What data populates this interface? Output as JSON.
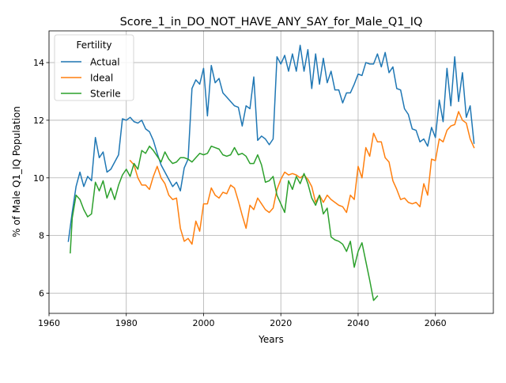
{
  "chart_data": {
    "type": "line",
    "title": "Score_1_in_DO_NOT_HAVE_ANY_SAY_for_Male_Q1_IQ",
    "xlabel": "Years",
    "ylabel": "% of Male Q1_IQ Population",
    "xlim": [
      1960,
      2075
    ],
    "ylim": [
      5.3,
      15.1
    ],
    "xticks": [
      1960,
      1980,
      2000,
      2020,
      2040,
      2060
    ],
    "yticks": [
      6,
      8,
      10,
      12,
      14
    ],
    "grid": true,
    "legend": {
      "title": "Fertility",
      "position": "top-left"
    },
    "series": [
      {
        "name": "Actual",
        "color": "#1f77b4",
        "points": [
          [
            1965,
            7.8
          ],
          [
            1966,
            8.8
          ],
          [
            1967,
            9.7
          ],
          [
            1968,
            10.2
          ],
          [
            1969,
            9.7
          ],
          [
            1970,
            10.05
          ],
          [
            1971,
            9.9
          ],
          [
            1972,
            11.4
          ],
          [
            1973,
            10.7
          ],
          [
            1974,
            10.9
          ],
          [
            1975,
            10.2
          ],
          [
            1976,
            10.3
          ],
          [
            1977,
            10.55
          ],
          [
            1978,
            10.8
          ],
          [
            1979,
            12.05
          ],
          [
            1980,
            12.0
          ],
          [
            1981,
            12.1
          ],
          [
            1982,
            11.95
          ],
          [
            1983,
            11.9
          ],
          [
            1984,
            12.0
          ],
          [
            1985,
            11.7
          ],
          [
            1986,
            11.6
          ],
          [
            1987,
            11.3
          ],
          [
            1988,
            10.85
          ],
          [
            1989,
            10.45
          ],
          [
            1990,
            10.2
          ],
          [
            1991,
            9.95
          ],
          [
            1992,
            9.7
          ],
          [
            1993,
            9.85
          ],
          [
            1994,
            9.55
          ],
          [
            1995,
            10.35
          ],
          [
            1996,
            10.65
          ],
          [
            1997,
            13.1
          ],
          [
            1998,
            13.4
          ],
          [
            1999,
            13.25
          ],
          [
            2000,
            13.8
          ],
          [
            2001,
            12.15
          ],
          [
            2002,
            13.9
          ],
          [
            2003,
            13.3
          ],
          [
            2004,
            13.45
          ],
          [
            2005,
            12.95
          ],
          [
            2006,
            12.8
          ],
          [
            2007,
            12.65
          ],
          [
            2008,
            12.5
          ],
          [
            2009,
            12.45
          ],
          [
            2010,
            11.8
          ],
          [
            2011,
            12.5
          ],
          [
            2012,
            12.4
          ],
          [
            2013,
            13.5
          ],
          [
            2014,
            11.3
          ],
          [
            2015,
            11.45
          ],
          [
            2016,
            11.35
          ],
          [
            2017,
            11.15
          ],
          [
            2018,
            11.35
          ],
          [
            2019,
            14.2
          ],
          [
            2020,
            13.95
          ],
          [
            2021,
            14.25
          ],
          [
            2022,
            13.7
          ],
          [
            2023,
            14.3
          ],
          [
            2024,
            13.7
          ],
          [
            2025,
            14.6
          ],
          [
            2026,
            13.7
          ],
          [
            2027,
            14.45
          ],
          [
            2028,
            13.1
          ],
          [
            2029,
            14.3
          ],
          [
            2030,
            13.25
          ],
          [
            2031,
            14.15
          ],
          [
            2032,
            13.3
          ],
          [
            2033,
            13.7
          ],
          [
            2034,
            13.05
          ],
          [
            2035,
            13.05
          ],
          [
            2036,
            12.6
          ],
          [
            2037,
            12.95
          ],
          [
            2038,
            12.95
          ],
          [
            2039,
            13.25
          ],
          [
            2040,
            13.6
          ],
          [
            2041,
            13.55
          ],
          [
            2042,
            14.0
          ],
          [
            2043,
            13.95
          ],
          [
            2044,
            13.95
          ],
          [
            2045,
            14.3
          ],
          [
            2046,
            13.85
          ],
          [
            2047,
            14.35
          ],
          [
            2048,
            13.65
          ],
          [
            2049,
            13.85
          ],
          [
            2050,
            13.1
          ],
          [
            2051,
            13.05
          ],
          [
            2052,
            12.4
          ],
          [
            2053,
            12.2
          ],
          [
            2054,
            11.7
          ],
          [
            2055,
            11.65
          ],
          [
            2056,
            11.25
          ],
          [
            2057,
            11.35
          ],
          [
            2058,
            11.1
          ],
          [
            2059,
            11.75
          ],
          [
            2060,
            11.4
          ],
          [
            2061,
            12.7
          ],
          [
            2062,
            11.95
          ],
          [
            2063,
            13.8
          ],
          [
            2064,
            12.5
          ],
          [
            2065,
            14.2
          ],
          [
            2066,
            12.65
          ],
          [
            2067,
            13.65
          ],
          [
            2068,
            12.1
          ],
          [
            2069,
            12.5
          ],
          [
            2070,
            11.2
          ]
        ]
      },
      {
        "name": "Ideal",
        "color": "#ff7f0e",
        "points": [
          [
            1981,
            10.6
          ],
          [
            1982,
            10.45
          ],
          [
            1983,
            10.0
          ],
          [
            1984,
            9.75
          ],
          [
            1985,
            9.75
          ],
          [
            1986,
            9.6
          ],
          [
            1987,
            10.05
          ],
          [
            1988,
            10.4
          ],
          [
            1989,
            10.0
          ],
          [
            1990,
            9.8
          ],
          [
            1991,
            9.4
          ],
          [
            1992,
            9.25
          ],
          [
            1993,
            9.3
          ],
          [
            1994,
            8.25
          ],
          [
            1995,
            7.8
          ],
          [
            1996,
            7.9
          ],
          [
            1997,
            7.7
          ],
          [
            1998,
            8.5
          ],
          [
            1999,
            8.15
          ],
          [
            2000,
            9.1
          ],
          [
            2001,
            9.1
          ],
          [
            2002,
            9.65
          ],
          [
            2003,
            9.4
          ],
          [
            2004,
            9.3
          ],
          [
            2005,
            9.5
          ],
          [
            2006,
            9.45
          ],
          [
            2007,
            9.75
          ],
          [
            2008,
            9.65
          ],
          [
            2009,
            9.2
          ],
          [
            2010,
            8.7
          ],
          [
            2011,
            8.25
          ],
          [
            2012,
            9.05
          ],
          [
            2013,
            8.9
          ],
          [
            2014,
            9.3
          ],
          [
            2015,
            9.1
          ],
          [
            2016,
            8.9
          ],
          [
            2017,
            8.8
          ],
          [
            2018,
            8.95
          ],
          [
            2019,
            9.6
          ],
          [
            2020,
            9.95
          ],
          [
            2021,
            10.2
          ],
          [
            2022,
            10.1
          ],
          [
            2023,
            10.15
          ],
          [
            2024,
            10.1
          ],
          [
            2025,
            10.0
          ],
          [
            2026,
            10.1
          ],
          [
            2027,
            9.95
          ],
          [
            2028,
            9.7
          ],
          [
            2029,
            9.15
          ],
          [
            2030,
            9.4
          ],
          [
            2031,
            9.15
          ],
          [
            2032,
            9.4
          ],
          [
            2033,
            9.25
          ],
          [
            2034,
            9.15
          ],
          [
            2035,
            9.05
          ],
          [
            2036,
            9.0
          ],
          [
            2037,
            8.8
          ],
          [
            2038,
            9.4
          ],
          [
            2039,
            9.25
          ],
          [
            2040,
            10.4
          ],
          [
            2041,
            10.0
          ],
          [
            2042,
            11.05
          ],
          [
            2043,
            10.75
          ],
          [
            2044,
            11.55
          ],
          [
            2045,
            11.25
          ],
          [
            2046,
            11.25
          ],
          [
            2047,
            10.7
          ],
          [
            2048,
            10.55
          ],
          [
            2049,
            9.9
          ],
          [
            2050,
            9.6
          ],
          [
            2051,
            9.25
          ],
          [
            2052,
            9.3
          ],
          [
            2053,
            9.15
          ],
          [
            2054,
            9.1
          ],
          [
            2055,
            9.15
          ],
          [
            2056,
            9.0
          ],
          [
            2057,
            9.8
          ],
          [
            2058,
            9.4
          ],
          [
            2059,
            10.65
          ],
          [
            2060,
            10.6
          ],
          [
            2061,
            11.35
          ],
          [
            2062,
            11.25
          ],
          [
            2063,
            11.65
          ],
          [
            2064,
            11.8
          ],
          [
            2065,
            11.85
          ],
          [
            2066,
            12.3
          ],
          [
            2067,
            12.0
          ],
          [
            2068,
            11.9
          ],
          [
            2069,
            11.35
          ],
          [
            2070,
            11.05
          ]
        ]
      },
      {
        "name": "Sterile",
        "color": "#2ca02c",
        "points": [
          [
            1965.5,
            7.4
          ],
          [
            1966,
            8.6
          ],
          [
            1967,
            9.4
          ],
          [
            1968,
            9.25
          ],
          [
            1969,
            8.9
          ],
          [
            1970,
            8.65
          ],
          [
            1971,
            8.75
          ],
          [
            1972,
            9.85
          ],
          [
            1973,
            9.55
          ],
          [
            1974,
            9.9
          ],
          [
            1975,
            9.3
          ],
          [
            1976,
            9.65
          ],
          [
            1977,
            9.25
          ],
          [
            1978,
            9.75
          ],
          [
            1979,
            10.1
          ],
          [
            1980,
            10.3
          ],
          [
            1981,
            10.05
          ],
          [
            1982,
            10.5
          ],
          [
            1983,
            10.3
          ],
          [
            1984,
            10.95
          ],
          [
            1985,
            10.85
          ],
          [
            1986,
            11.1
          ],
          [
            1987,
            10.95
          ],
          [
            1988,
            10.75
          ],
          [
            1989,
            10.55
          ],
          [
            1990,
            10.9
          ],
          [
            1991,
            10.65
          ],
          [
            1992,
            10.5
          ],
          [
            1993,
            10.55
          ],
          [
            1994,
            10.7
          ],
          [
            1995,
            10.7
          ],
          [
            1996,
            10.65
          ],
          [
            1997,
            10.55
          ],
          [
            1998,
            10.7
          ],
          [
            1999,
            10.85
          ],
          [
            2000,
            10.8
          ],
          [
            2001,
            10.85
          ],
          [
            2002,
            11.1
          ],
          [
            2003,
            11.05
          ],
          [
            2004,
            11.0
          ],
          [
            2005,
            10.8
          ],
          [
            2006,
            10.75
          ],
          [
            2007,
            10.8
          ],
          [
            2008,
            11.05
          ],
          [
            2009,
            10.8
          ],
          [
            2010,
            10.85
          ],
          [
            2011,
            10.75
          ],
          [
            2012,
            10.5
          ],
          [
            2013,
            10.5
          ],
          [
            2014,
            10.8
          ],
          [
            2015,
            10.45
          ],
          [
            2016,
            9.85
          ],
          [
            2017,
            9.9
          ],
          [
            2018,
            10.05
          ],
          [
            2019,
            9.4
          ],
          [
            2020,
            9.1
          ],
          [
            2021,
            8.8
          ],
          [
            2022,
            9.9
          ],
          [
            2023,
            9.6
          ],
          [
            2024,
            10.05
          ],
          [
            2025,
            9.8
          ],
          [
            2026,
            10.15
          ],
          [
            2027,
            9.8
          ],
          [
            2028,
            9.3
          ],
          [
            2029,
            9.05
          ],
          [
            2030,
            9.4
          ],
          [
            2031,
            8.75
          ],
          [
            2032,
            8.95
          ],
          [
            2033,
            7.95
          ],
          [
            2034,
            7.85
          ],
          [
            2035,
            7.8
          ],
          [
            2036,
            7.7
          ],
          [
            2037,
            7.45
          ],
          [
            2038,
            7.8
          ],
          [
            2039,
            6.9
          ],
          [
            2040,
            7.45
          ],
          [
            2041,
            7.75
          ],
          [
            2042,
            7.1
          ],
          [
            2043,
            6.45
          ],
          [
            2044,
            5.75
          ],
          [
            2045,
            5.9
          ]
        ]
      }
    ]
  }
}
